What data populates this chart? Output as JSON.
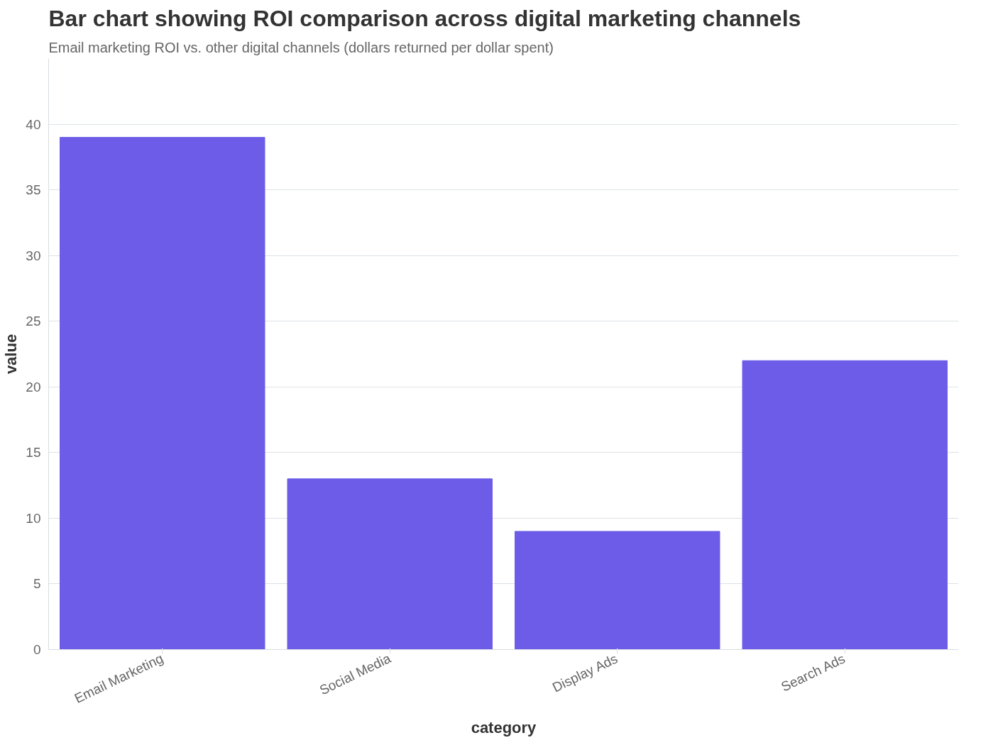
{
  "chart_data": {
    "type": "bar",
    "title": "Bar chart showing ROI comparison across digital marketing channels",
    "subtitle": "Email marketing ROI vs. other digital channels (dollars returned per dollar spent)",
    "xlabel": "category",
    "ylabel": "value",
    "categories": [
      "Email Marketing",
      "Social Media",
      "Display Ads",
      "Search Ads"
    ],
    "values": [
      39,
      13,
      9,
      22
    ],
    "color": "#6c5ce7",
    "ylim": [
      0,
      45
    ],
    "yticks": [
      0,
      5,
      10,
      15,
      20,
      25,
      30,
      35,
      40
    ],
    "grid": "y"
  }
}
